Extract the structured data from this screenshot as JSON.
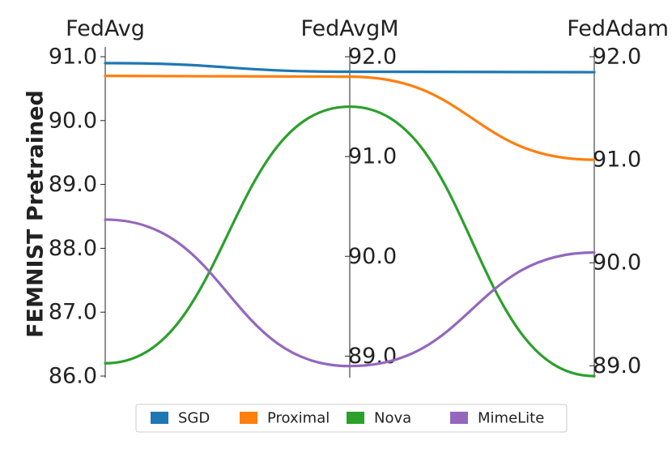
{
  "chart_data": {
    "type": "line",
    "subtype": "parallel-coordinates",
    "ylabel": "FEMNIST Pretrained",
    "axes": [
      {
        "name": "FedAvg",
        "ylim": [
          86.0,
          91.0
        ],
        "ticks": [
          "86.0",
          "87.0",
          "88.0",
          "89.0",
          "90.0",
          "91.0"
        ]
      },
      {
        "name": "FedAvgM",
        "ylim": [
          88.8,
          92.0
        ],
        "ticks": [
          "89.0",
          "90.0",
          "91.0",
          "92.0"
        ]
      },
      {
        "name": "FedAdam",
        "ylim": [
          88.9,
          92.0
        ],
        "ticks": [
          "89.0",
          "90.0",
          "91.0",
          "92.0"
        ]
      }
    ],
    "series": [
      {
        "name": "SGD",
        "color": "#1f77b4",
        "values": [
          90.9,
          91.85,
          91.85
        ]
      },
      {
        "name": "Proximal",
        "color": "#ff7f0e",
        "values": [
          90.7,
          91.8,
          91.0
        ]
      },
      {
        "name": "Nova",
        "color": "#2ca02c",
        "values": [
          86.2,
          91.5,
          88.9
        ]
      },
      {
        "name": "MimeLite",
        "color": "#9467bd",
        "values": [
          88.45,
          88.9,
          90.1
        ]
      }
    ],
    "legend": {
      "position": "bottom-center"
    }
  }
}
